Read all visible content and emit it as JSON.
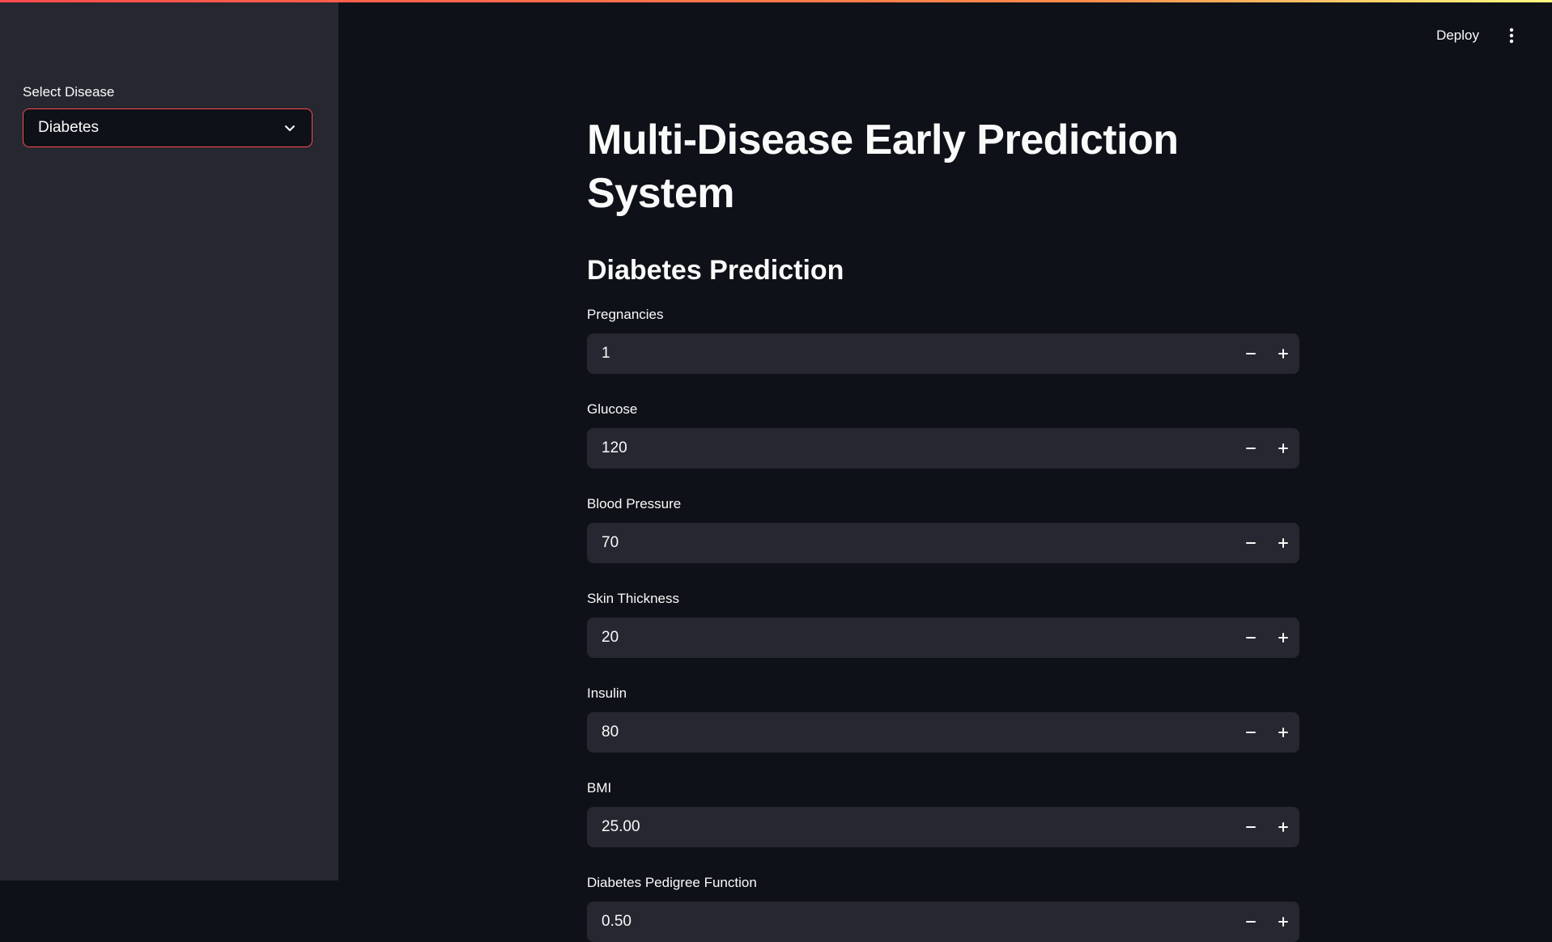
{
  "sidebar": {
    "select_label": "Select Disease",
    "select_value": "Diabetes"
  },
  "header": {
    "deploy_label": "Deploy"
  },
  "main": {
    "title": "Multi-Disease Early Prediction System",
    "section_title": "Diabetes Prediction",
    "fields": [
      {
        "label": "Pregnancies",
        "value": "1"
      },
      {
        "label": "Glucose",
        "value": "120"
      },
      {
        "label": "Blood Pressure",
        "value": "70"
      },
      {
        "label": "Skin Thickness",
        "value": "20"
      },
      {
        "label": "Insulin",
        "value": "80"
      },
      {
        "label": "BMI",
        "value": "25.00"
      },
      {
        "label": "Diabetes Pedigree Function",
        "value": "0.50"
      }
    ]
  },
  "colors": {
    "accent": "#ff4b4b",
    "background": "#0e1117",
    "sidebar": "#262730"
  },
  "icons": {
    "select": "chevron-down-icon",
    "menu": "more-vertical-icon",
    "decrement": "minus-icon",
    "increment": "plus-icon"
  }
}
